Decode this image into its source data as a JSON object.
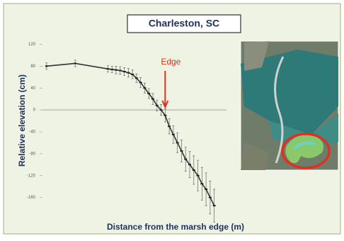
{
  "chart_data": {
    "type": "scatter",
    "title": "Charleston, SC",
    "x_label": "Distance from the marsh edge (m)",
    "y_label": "Relative elevation (cm)",
    "annotation": "Edge",
    "annotation_x": 0,
    "color": "#222222",
    "x": [
      -29,
      -22,
      -14,
      -13,
      -12,
      -11,
      -10,
      -9,
      -8,
      -7,
      -6,
      -5,
      -4,
      -3,
      -2,
      -1,
      0,
      1,
      2,
      3,
      4,
      5,
      6,
      7,
      8,
      9,
      10,
      11,
      12
    ],
    "values": [
      80,
      85,
      75,
      74,
      73,
      72,
      70,
      68,
      65,
      58,
      50,
      40,
      30,
      20,
      8,
      0,
      -10,
      -30,
      -45,
      -60,
      -75,
      -90,
      -100,
      -110,
      -120,
      -135,
      -145,
      -160,
      -175
    ],
    "errors": [
      6,
      6,
      6,
      6,
      7,
      7,
      7,
      8,
      8,
      8,
      9,
      9,
      9,
      10,
      10,
      10,
      12,
      14,
      16,
      18,
      20,
      22,
      24,
      26,
      28,
      30,
      30,
      30,
      30
    ],
    "xlim": [
      -30,
      15
    ],
    "ylim": [
      -180,
      140
    ],
    "yticks": [
      120,
      80,
      40,
      0,
      -40,
      -80,
      -120,
      -160
    ]
  }
}
